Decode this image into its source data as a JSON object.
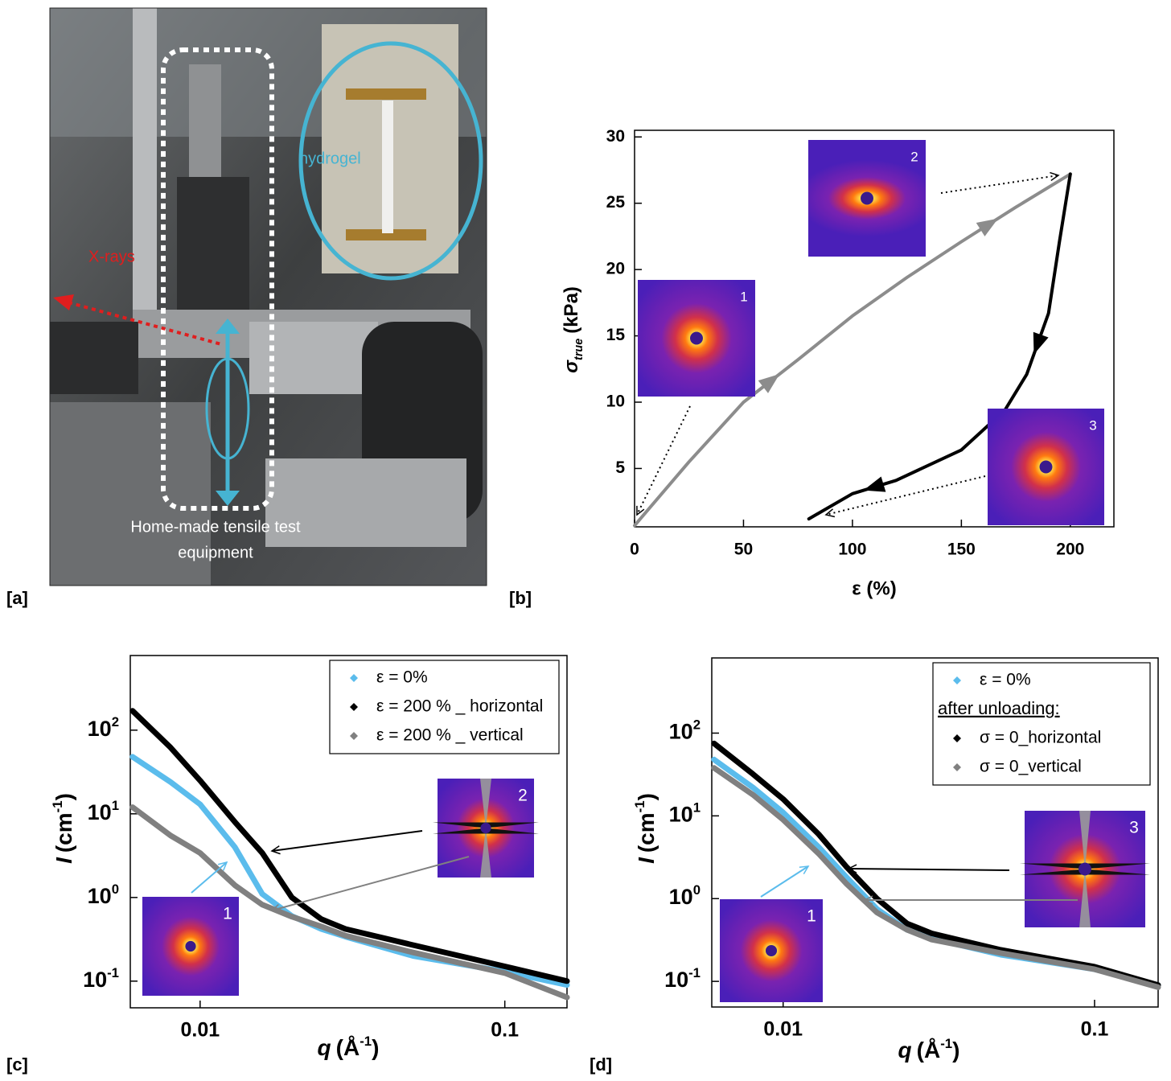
{
  "photo": {
    "panel_label": "[a]",
    "xrays": "X-rays",
    "hydrogel": "hydrogel",
    "equipment": [
      "Home-made tensile test",
      "equipment"
    ]
  },
  "chart_data": [
    {
      "type": "line",
      "panel_label": "[b]",
      "xlabel": "ε (%)",
      "ylabel": {
        "symbol": "σ",
        "subscript": "true",
        "unit": "(kPa)"
      },
      "xlim": [
        0,
        220
      ],
      "ylim": [
        0.6,
        30.5
      ],
      "xticks": [
        0,
        50,
        100,
        150,
        200
      ],
      "yticks": [
        5,
        10,
        15,
        20,
        25,
        30
      ],
      "series": [
        {
          "color": "#8c8c8c",
          "x": [
            0,
            25,
            50,
            75,
            100,
            125,
            150,
            175,
            200
          ],
          "values": [
            0.7,
            5.5,
            10,
            13.2,
            16.5,
            19.4,
            22.1,
            24.7,
            27.2
          ]
        },
        {
          "color": "#000000",
          "x": [
            200,
            195,
            190,
            180,
            170,
            150,
            120,
            100,
            80
          ],
          "values": [
            27.2,
            22.1,
            16.7,
            12.1,
            9.4,
            6.4,
            4.1,
            3.1,
            1.2
          ]
        }
      ],
      "insets": [
        "1",
        "2",
        "3"
      ]
    },
    {
      "type": "line",
      "panel_label": "[c]",
      "xscale": "log",
      "yscale": "log",
      "xlabel": {
        "symbol": "q",
        "unit": "(Å",
        "exponent": "-1",
        "close": ")"
      },
      "ylabel": {
        "symbol": "I",
        "unit": "(cm",
        "exponent": "-1",
        "close": ")"
      },
      "xlim": [
        0.0059,
        0.16
      ],
      "ylim": [
        0.048,
        780
      ],
      "xticks": [
        0.01,
        0.1
      ],
      "yticks": [
        {
          "value": 0.1,
          "label": "10",
          "exponent": "-1"
        },
        {
          "value": 1,
          "label": "10",
          "exponent": "0"
        },
        {
          "value": 10,
          "label": "10",
          "exponent": "1"
        },
        {
          "value": 100,
          "label": "10",
          "exponent": "2"
        }
      ],
      "legend": "upper right",
      "series": [
        {
          "name": "ε = 0%",
          "color": "#5bbcec",
          "x": [
            0.006,
            0.008,
            0.01,
            0.013,
            0.016,
            0.02,
            0.025,
            0.03,
            0.05,
            0.1,
            0.16
          ],
          "values": [
            48,
            24,
            13,
            4,
            1.1,
            0.6,
            0.42,
            0.34,
            0.2,
            0.13,
            0.09
          ]
        },
        {
          "name": "ε = 200 % _ horizontal",
          "color": "#000000",
          "x": [
            0.006,
            0.008,
            0.01,
            0.013,
            0.016,
            0.02,
            0.025,
            0.03,
            0.05,
            0.1,
            0.16
          ],
          "values": [
            170,
            62,
            25,
            8,
            3.4,
            1,
            0.55,
            0.42,
            0.27,
            0.15,
            0.1
          ]
        },
        {
          "name": "ε = 200 % _ vertical",
          "color": "#808080",
          "x": [
            0.006,
            0.008,
            0.01,
            0.013,
            0.016,
            0.02,
            0.025,
            0.03,
            0.05,
            0.1,
            0.16
          ],
          "values": [
            12,
            5.5,
            3.4,
            1.4,
            0.82,
            0.59,
            0.45,
            0.35,
            0.22,
            0.125,
            0.064
          ]
        }
      ],
      "insets": [
        "1",
        "2"
      ]
    },
    {
      "type": "line",
      "panel_label": "[d]",
      "xscale": "log",
      "yscale": "log",
      "xlabel": {
        "symbol": "q",
        "unit": "(Å",
        "exponent": "-1",
        "close": ")"
      },
      "ylabel": {
        "symbol": "I",
        "unit": "(cm",
        "exponent": "-1",
        "close": ")"
      },
      "xlim": [
        0.0059,
        0.16
      ],
      "ylim": [
        0.049,
        810
      ],
      "xticks": [
        0.01,
        0.1
      ],
      "yticks": [
        {
          "value": 0.1,
          "label": "10",
          "exponent": "-1"
        },
        {
          "value": 1,
          "label": "10",
          "exponent": "0"
        },
        {
          "value": 10,
          "label": "10",
          "exponent": "1"
        },
        {
          "value": 100,
          "label": "10",
          "exponent": "2"
        }
      ],
      "legend": "upper right",
      "legend_note": "after unloading:",
      "series": [
        {
          "name": "ε = 0%",
          "color": "#5bbcec",
          "x": [
            0.006,
            0.008,
            0.01,
            0.013,
            0.016,
            0.02,
            0.025,
            0.03,
            0.05,
            0.1,
            0.16
          ],
          "values": [
            48,
            22,
            11,
            4.2,
            1.8,
            0.75,
            0.42,
            0.33,
            0.21,
            0.14,
            0.09
          ]
        },
        {
          "name": "σ = 0_horizontal",
          "color": "#000000",
          "x": [
            0.006,
            0.008,
            0.01,
            0.013,
            0.016,
            0.02,
            0.025,
            0.03,
            0.05,
            0.1,
            0.16
          ],
          "values": [
            75,
            32,
            16,
            6,
            2.4,
            1,
            0.5,
            0.38,
            0.24,
            0.15,
            0.09
          ]
        },
        {
          "name": "σ = 0_vertical",
          "color": "#808080",
          "x": [
            0.006,
            0.008,
            0.01,
            0.013,
            0.016,
            0.02,
            0.025,
            0.03,
            0.05,
            0.1,
            0.16
          ],
          "values": [
            38,
            18,
            9,
            3.5,
            1.5,
            0.68,
            0.42,
            0.32,
            0.22,
            0.14,
            0.085
          ]
        }
      ],
      "insets": [
        "1",
        "3"
      ]
    }
  ]
}
